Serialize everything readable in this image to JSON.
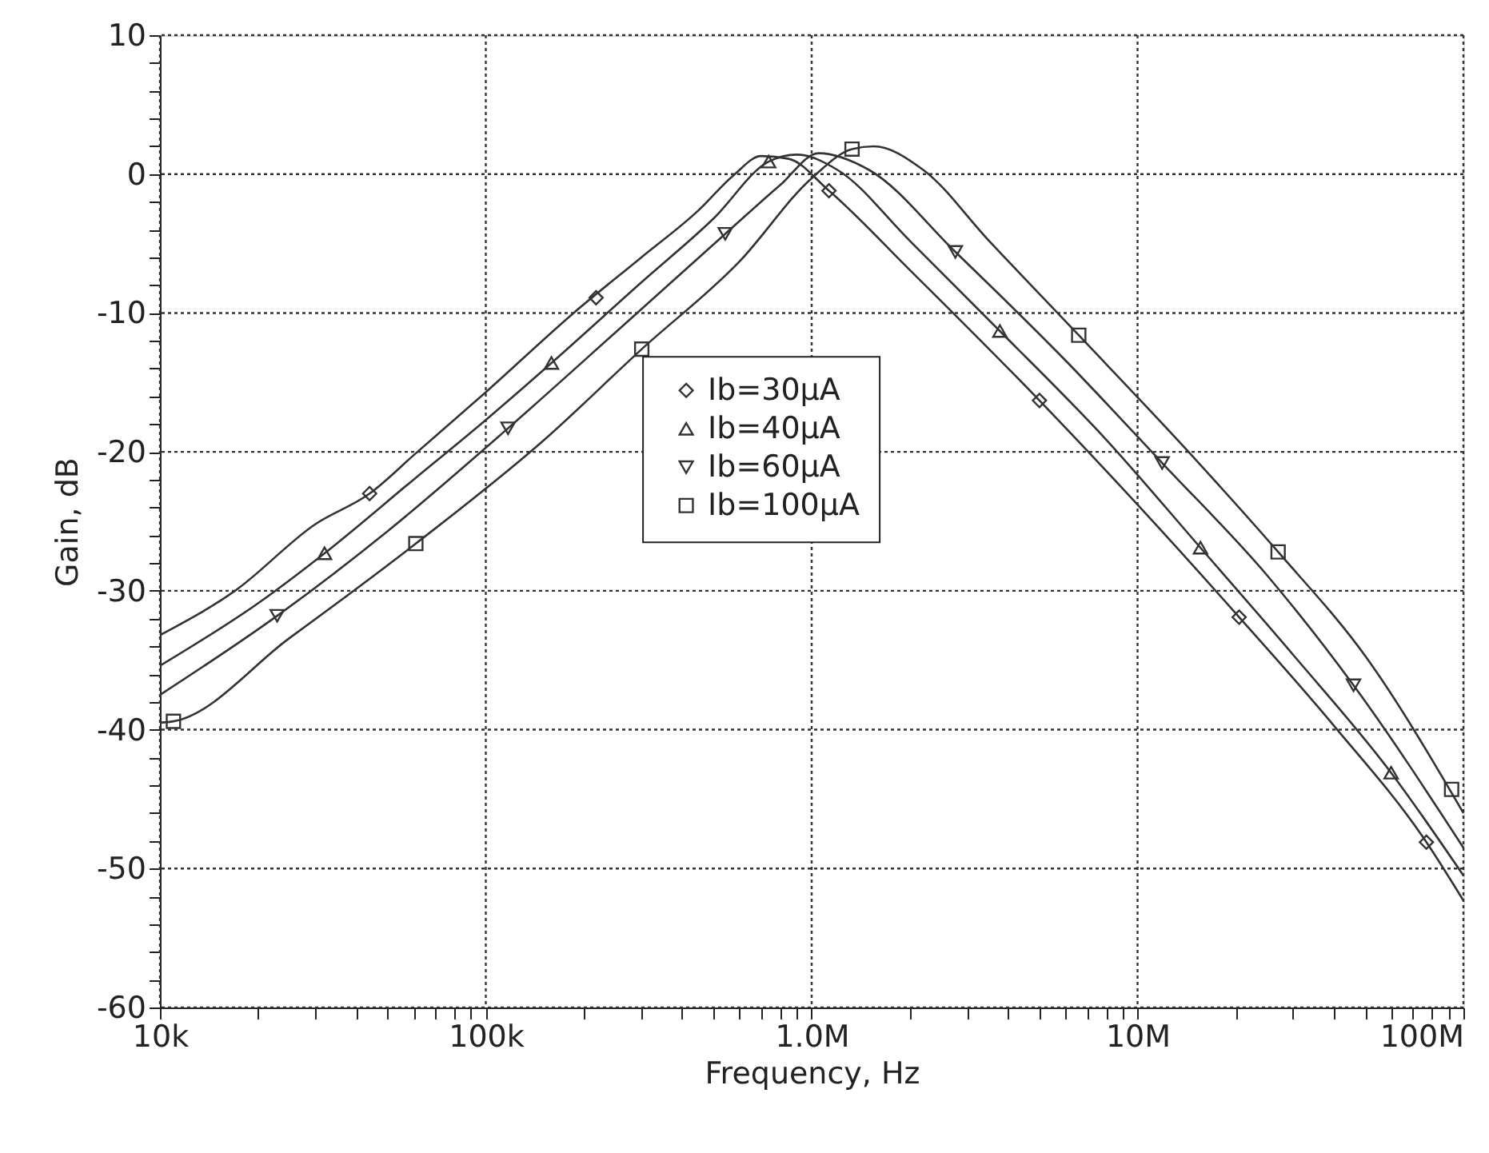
{
  "chart_data": {
    "type": "line",
    "xlabel": "Frequency, Hz",
    "ylabel": "Gain, dB",
    "log": "x",
    "xlim": [
      10000,
      100000000
    ],
    "ylim": [
      -60,
      10
    ],
    "xticks": [
      {
        "value": 10000,
        "label": "10k"
      },
      {
        "value": 20000,
        "label": null
      },
      {
        "value": 30000,
        "label": null
      },
      {
        "value": 40000,
        "label": null
      },
      {
        "value": 50000,
        "label": null
      },
      {
        "value": 60000,
        "label": null
      },
      {
        "value": 70000,
        "label": null
      },
      {
        "value": 80000,
        "label": null
      },
      {
        "value": 90000,
        "label": null
      },
      {
        "value": 100000,
        "label": "100k"
      },
      {
        "value": 200000,
        "label": null
      },
      {
        "value": 300000,
        "label": null
      },
      {
        "value": 400000,
        "label": null
      },
      {
        "value": 500000,
        "label": null
      },
      {
        "value": 600000,
        "label": null
      },
      {
        "value": 700000,
        "label": null
      },
      {
        "value": 800000,
        "label": null
      },
      {
        "value": 900000,
        "label": null
      },
      {
        "value": 1000000,
        "label": "1.0M"
      },
      {
        "value": 2000000,
        "label": null
      },
      {
        "value": 3000000,
        "label": null
      },
      {
        "value": 4000000,
        "label": null
      },
      {
        "value": 5000000,
        "label": null
      },
      {
        "value": 6000000,
        "label": null
      },
      {
        "value": 7000000,
        "label": null
      },
      {
        "value": 8000000,
        "label": null
      },
      {
        "value": 9000000,
        "label": null
      },
      {
        "value": 10000000,
        "label": "10M"
      },
      {
        "value": 20000000,
        "label": null
      },
      {
        "value": 30000000,
        "label": null
      },
      {
        "value": 40000000,
        "label": null
      },
      {
        "value": 50000000,
        "label": null
      },
      {
        "value": 60000000,
        "label": null
      },
      {
        "value": 70000000,
        "label": null
      },
      {
        "value": 80000000,
        "label": null
      },
      {
        "value": 90000000,
        "label": null
      },
      {
        "value": 100000000,
        "label": "100M"
      }
    ],
    "yticks": [
      -60,
      -50,
      -40,
      -30,
      -20,
      -10,
      0,
      10,
      {
        "value": -58,
        "label": null
      },
      {
        "value": -56,
        "label": null
      },
      {
        "value": -54,
        "label": null
      },
      {
        "value": -52,
        "label": null
      },
      {
        "value": -48,
        "label": null
      },
      {
        "value": -46,
        "label": null
      },
      {
        "value": -44,
        "label": null
      },
      {
        "value": -42,
        "label": null
      },
      {
        "value": -38,
        "label": null
      },
      {
        "value": -36,
        "label": null
      },
      {
        "value": -34,
        "label": null
      },
      {
        "value": -32,
        "label": null
      },
      {
        "value": -28,
        "label": null
      },
      {
        "value": -26,
        "label": null
      },
      {
        "value": -24,
        "label": null
      },
      {
        "value": -22,
        "label": null
      },
      {
        "value": -18,
        "label": null
      },
      {
        "value": -16,
        "label": null
      },
      {
        "value": -14,
        "label": null
      },
      {
        "value": -12,
        "label": null
      },
      {
        "value": -8,
        "label": null
      },
      {
        "value": -6,
        "label": null
      },
      {
        "value": -4,
        "label": null
      },
      {
        "value": -2,
        "label": null
      },
      {
        "value": 2,
        "label": null
      },
      {
        "value": 4,
        "label": null
      },
      {
        "value": 6,
        "label": null
      },
      {
        "value": 8,
        "label": null
      }
    ],
    "grid": true,
    "legend": "center",
    "line_style": "solid",
    "series": [
      {
        "color": "#333333",
        "x": [
          10000,
          17000,
          30000,
          44000,
          61000,
          100000,
          186000,
          300000,
          450000,
          575000,
          700000,
          850000,
          1130000,
          2000000,
          5000000,
          10000000,
          20500000,
          40000000,
          77000000,
          100000000
        ],
        "values": [
          -33.2,
          -30,
          -25.2,
          -23,
          -20.1,
          -15.7,
          -10,
          -6,
          -2.6,
          -0.1,
          1.3,
          1.1,
          -1.2,
          -6.9,
          -16.3,
          -23.8,
          -31.9,
          -39.7,
          -48.1,
          -52.3
        ]
      },
      {
        "color": "#333333",
        "x": [
          10000,
          20000,
          32000,
          60000,
          100000,
          159000,
          300000,
          500000,
          738000,
          900000,
          1200000,
          2000000,
          3780000,
          8000000,
          15600000,
          30000000,
          60000000,
          100000000
        ],
        "values": [
          -35.4,
          -30.9,
          -27.3,
          -22,
          -17.7,
          -13.6,
          -7.8,
          -3.2,
          0.9,
          1.4,
          0.3,
          -4.8,
          -11.3,
          -19.1,
          -26.9,
          -34.6,
          -43.1,
          -50.5
        ]
      },
      {
        "color": "#333333",
        "x": [
          10000,
          22900,
          50000,
          117000,
          250000,
          543000,
          800000,
          1050000,
          1500000,
          2760000,
          6000000,
          11900000,
          25000000,
          46000000,
          100000000
        ],
        "values": [
          -37.5,
          -31.8,
          -25.7,
          -18.3,
          -11.4,
          -4.3,
          -0.8,
          1.5,
          0.3,
          -5.6,
          -13.4,
          -20.8,
          -28.9,
          -36.8,
          -48.5
        ]
      },
      {
        "color": "#333333",
        "x": [
          10000,
          11000,
          25000,
          61000,
          150000,
          301000,
          600000,
          1000000,
          1330000,
          1550000,
          2200000,
          3500000,
          6600000,
          15000000,
          27000000,
          50000000,
          100000000
        ],
        "values": [
          -39.5,
          -39.4,
          -33.4,
          -26.6,
          -19.2,
          -12.6,
          -6.3,
          -0.3,
          1.8,
          2,
          0.3,
          -4.8,
          -11.6,
          -20.5,
          -27.2,
          -34.7,
          -46
        ]
      },
      {
        "type": "scatter",
        "name": "Ib=30μA",
        "marker": "diamond",
        "color": "#333333",
        "x": [
          44000,
          218000,
          1130000,
          5000000,
          20500000,
          77000000
        ],
        "values": [
          -23,
          -8.9,
          -1.2,
          -16.3,
          -31.9,
          -48.1
        ]
      },
      {
        "type": "scatter",
        "name": "Ib=40μA",
        "marker": "triangle",
        "color": "#333333",
        "x": [
          32000,
          159000,
          738000,
          3780000,
          15600000,
          60000000
        ],
        "values": [
          -27.3,
          -13.6,
          0.9,
          -11.3,
          -26.9,
          -43.1
        ]
      },
      {
        "type": "scatter",
        "name": "Ib=60μA",
        "marker": "triangle-down",
        "color": "#333333",
        "x": [
          22900,
          117000,
          543000,
          2760000,
          11900000,
          46000000
        ],
        "values": [
          -31.8,
          -18.3,
          -4.3,
          -5.6,
          -20.8,
          -36.8
        ]
      },
      {
        "type": "scatter",
        "name": "Ib=100μA",
        "marker": "square",
        "color": "#333333",
        "x": [
          11000,
          61000,
          301000,
          1330000,
          6600000,
          27000000,
          92000000
        ],
        "values": [
          -39.4,
          -26.6,
          -12.6,
          1.8,
          -11.6,
          -27.2,
          -44.3
        ]
      }
    ]
  }
}
